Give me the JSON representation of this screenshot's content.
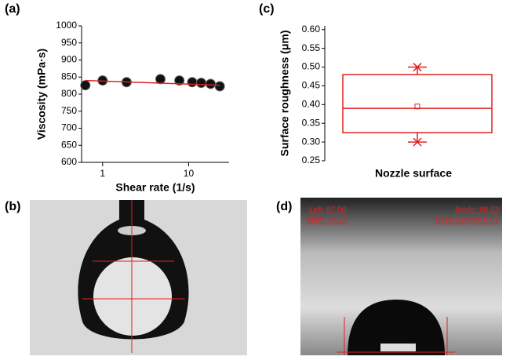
{
  "panel_labels": [
    "(a)",
    "(b)",
    "(c)",
    "(d)"
  ],
  "chart_data": [
    {
      "type": "scatter",
      "x_label": "Shear rate (1/s)",
      "y_label": "Viscosity (mPa·s)",
      "log_x": true,
      "xlim": [
        0.57,
        29.5
      ],
      "xticks": [
        1,
        10
      ],
      "ylim": [
        600,
        1000
      ],
      "yticks": [
        600,
        650,
        700,
        750,
        800,
        850,
        900,
        950,
        1000
      ],
      "series": [
        {
          "color": "#111111",
          "marker": "circle",
          "x": [
            0.63,
            1.0,
            1.9,
            4.7,
            7.8,
            11,
            14,
            18,
            23
          ],
          "values": [
            826,
            840,
            835,
            844,
            840,
            835,
            833,
            830,
            823
          ]
        },
        {
          "color": "#e02020",
          "marker": "none",
          "x": [
            0.63,
            23
          ],
          "values": [
            840,
            826
          ]
        }
      ]
    },
    {
      "type": "box",
      "x_label": "Nozzle surface",
      "y_label": "Surface roughness (μm)",
      "ylim": [
        0.25,
        0.61
      ],
      "yticks": [
        0.25,
        {
          "value": 0.3,
          "label": "0.30"
        },
        0.35,
        {
          "value": 0.4,
          "label": "0.40"
        },
        0.45,
        {
          "value": 0.5,
          "label": "0.50"
        },
        0.55,
        {
          "value": 0.6,
          "label": "0.60"
        }
      ],
      "color": "#e02020",
      "min": [
        0.3
      ],
      "q1": [
        0.325
      ],
      "median": [
        0.39
      ],
      "q3": [
        0.48
      ],
      "max": [
        0.5
      ],
      "mean": [
        0.395
      ]
    }
  ],
  "photo_d": {
    "annotations": [
      "Left: 87.00",
      "Right: 86.27",
      "Angle: 86.63",
      "Base Length: 0.51"
    ]
  }
}
